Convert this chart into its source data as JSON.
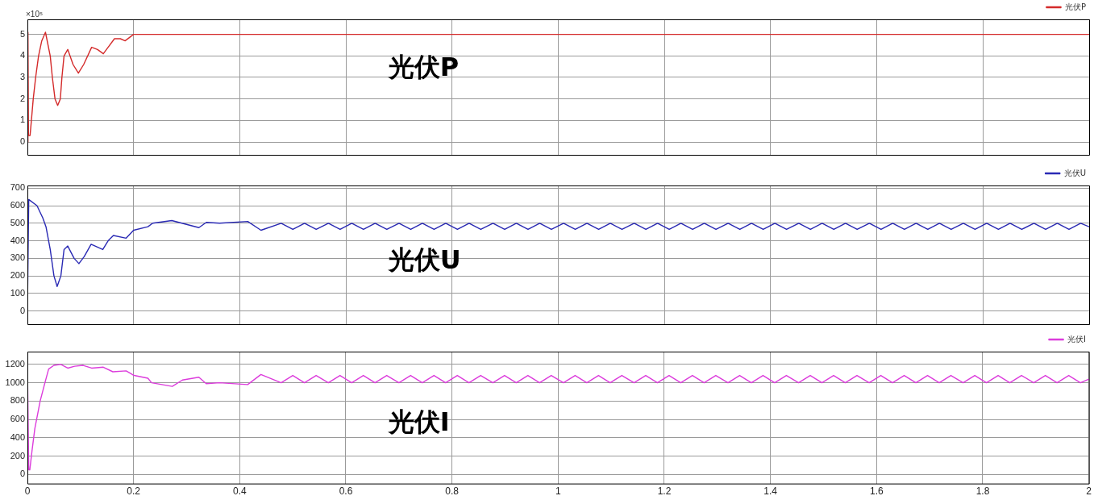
{
  "chart_data": [
    {
      "type": "line",
      "ylabel": "×10⁵",
      "annotations": [
        "光伏P"
      ],
      "xlim": [
        0,
        2
      ],
      "xticks": [
        0,
        0.2,
        0.4,
        0.6,
        0.8,
        1,
        1.2,
        1.4,
        1.6,
        1.8,
        2
      ],
      "ylim": [
        -0.6,
        5.7
      ],
      "yticks": [
        0,
        1,
        2,
        3,
        4,
        5
      ],
      "grid": true,
      "legend": "top right",
      "tick_labels": "y",
      "series": [
        {
          "name": "光伏P",
          "color": "#d42a2a",
          "x": [
            0,
            0.001,
            0.002,
            0.005,
            0.0075,
            0.011,
            0.0155,
            0.021,
            0.027,
            0.034,
            0.043,
            0.047,
            0.052,
            0.057,
            0.062,
            0.065,
            0.069,
            0.076,
            0.086,
            0.096,
            0.106,
            0.121,
            0.132,
            0.143,
            0.152,
            0.164,
            0.175,
            0.184,
            0.2,
            0.23,
            0.272,
            0.3,
            0.5,
            1,
            1.5,
            2
          ],
          "values": [
            0,
            5.1,
            0.3,
            0.3,
            1,
            2,
            3,
            4,
            4.7,
            5.1,
            4,
            3,
            2,
            1.7,
            2,
            3,
            4,
            4.3,
            3.6,
            3.2,
            3.6,
            4.4,
            4.3,
            4.1,
            4.4,
            4.8,
            4.8,
            4.7,
            5,
            5,
            5,
            5,
            5,
            5,
            5,
            5
          ]
        }
      ]
    },
    {
      "type": "line",
      "annotations": [
        "光伏U"
      ],
      "xlim": [
        0,
        2
      ],
      "xticks": [
        0,
        0.2,
        0.4,
        0.6,
        0.8,
        1,
        1.2,
        1.4,
        1.6,
        1.8,
        2
      ],
      "ylim": [
        -75,
        715
      ],
      "yticks": [
        0,
        100,
        200,
        300,
        400,
        500,
        600,
        700
      ],
      "grid": true,
      "legend": "top right",
      "tick_labels": "y",
      "series": [
        {
          "name": "光伏U",
          "color": "#2a2ab4",
          "x": [
            0,
            0.0025,
            0.018,
            0.029,
            0.035,
            0.043,
            0.05,
            0.056,
            0.063,
            0.069,
            0.076,
            0.088,
            0.097,
            0.107,
            0.12,
            0.142,
            0.152,
            0.162,
            0.186,
            0.2,
            0.227,
            0.236,
            0.272,
            0.323,
            0.337,
            0.362,
            0.415,
            0.44,
            0.478,
            0.5,
            0.522,
            0.544,
            0.567,
            0.589,
            0.611,
            0.633,
            0.655,
            0.677,
            0.7,
            0.722,
            0.744,
            0.766,
            0.788,
            0.81,
            0.832,
            0.854,
            0.877,
            0.899,
            0.921,
            0.943,
            0.965,
            0.987,
            1.01,
            1.032,
            1.054,
            1.076,
            1.098,
            1.12,
            1.143,
            1.165,
            1.187,
            1.209,
            1.231,
            1.253,
            1.275,
            1.297,
            1.32,
            1.342,
            1.364,
            1.386,
            1.408,
            1.43,
            1.453,
            1.475,
            1.497,
            1.519,
            1.541,
            1.563,
            1.586,
            1.608,
            1.63,
            1.652,
            1.674,
            1.696,
            1.718,
            1.74,
            1.763,
            1.785,
            1.807,
            1.829,
            1.851,
            1.873,
            1.896,
            1.918,
            1.94,
            1.962,
            1.984,
            2
          ],
          "values": [
            0,
            635,
            600,
            530,
            480,
            350,
            200,
            140,
            200,
            350,
            370,
            300,
            270,
            310,
            380,
            350,
            400,
            430,
            415,
            460,
            480,
            500,
            515,
            475,
            505,
            500,
            510,
            460,
            500,
            465,
            500,
            465,
            500,
            465,
            500,
            465,
            500,
            465,
            500,
            465,
            500,
            465,
            500,
            465,
            500,
            465,
            500,
            465,
            500,
            465,
            500,
            465,
            500,
            465,
            500,
            465,
            500,
            465,
            500,
            465,
            500,
            465,
            500,
            465,
            500,
            465,
            500,
            465,
            500,
            465,
            500,
            465,
            500,
            465,
            500,
            465,
            500,
            465,
            500,
            465,
            500,
            465,
            500,
            465,
            500,
            465,
            500,
            465,
            500,
            465,
            500,
            465,
            500,
            465,
            500,
            465,
            500,
            480
          ]
        }
      ]
    },
    {
      "type": "line",
      "annotations": [
        "光伏I"
      ],
      "xlim": [
        0,
        2
      ],
      "xticks": [
        0,
        0.2,
        0.4,
        0.6,
        0.8,
        1,
        1.2,
        1.4,
        1.6,
        1.8,
        2
      ],
      "ylim": [
        -100,
        1340
      ],
      "yticks": [
        0,
        200,
        400,
        600,
        800,
        1000,
        1200
      ],
      "grid": true,
      "legend": "top right",
      "series": [
        {
          "name": "光伏I",
          "color": "#dc3cdc",
          "x": [
            0,
            0.0025,
            0.0045,
            0.0085,
            0.014,
            0.024,
            0.033,
            0.04,
            0.05,
            0.063,
            0.076,
            0.089,
            0.105,
            0.121,
            0.143,
            0.161,
            0.186,
            0.201,
            0.227,
            0.234,
            0.273,
            0.292,
            0.323,
            0.337,
            0.362,
            0.415,
            0.44,
            0.478,
            0.5,
            0.522,
            0.544,
            0.567,
            0.589,
            0.611,
            0.633,
            0.655,
            0.677,
            0.7,
            0.722,
            0.744,
            0.766,
            0.788,
            0.81,
            0.832,
            0.854,
            0.877,
            0.899,
            0.921,
            0.943,
            0.965,
            0.987,
            1.01,
            1.032,
            1.054,
            1.076,
            1.098,
            1.12,
            1.143,
            1.165,
            1.187,
            1.209,
            1.231,
            1.253,
            1.275,
            1.297,
            1.32,
            1.342,
            1.364,
            1.386,
            1.408,
            1.43,
            1.453,
            1.475,
            1.497,
            1.519,
            1.541,
            1.563,
            1.586,
            1.608,
            1.63,
            1.652,
            1.674,
            1.696,
            1.718,
            1.74,
            1.763,
            1.785,
            1.807,
            1.829,
            1.851,
            1.873,
            1.896,
            1.918,
            1.94,
            1.962,
            1.984,
            2
          ],
          "values": [
            1200,
            50,
            50,
            250,
            500,
            800,
            1000,
            1150,
            1190,
            1200,
            1160,
            1180,
            1190,
            1160,
            1170,
            1120,
            1130,
            1080,
            1050,
            1000,
            960,
            1030,
            1060,
            990,
            1000,
            980,
            1090,
            1000,
            1080,
            1000,
            1080,
            1000,
            1080,
            1000,
            1080,
            1000,
            1080,
            1000,
            1080,
            1000,
            1080,
            1000,
            1080,
            1000,
            1080,
            1000,
            1080,
            1000,
            1080,
            1000,
            1080,
            1000,
            1080,
            1000,
            1080,
            1000,
            1080,
            1000,
            1080,
            1000,
            1080,
            1000,
            1080,
            1000,
            1080,
            1000,
            1080,
            1000,
            1080,
            1000,
            1080,
            1000,
            1080,
            1000,
            1080,
            1000,
            1080,
            1000,
            1080,
            1000,
            1080,
            1000,
            1080,
            1000,
            1080,
            1000,
            1080,
            1000,
            1080,
            1000,
            1080,
            1000,
            1080,
            1000,
            1080,
            1000,
            1040
          ]
        }
      ]
    }
  ]
}
